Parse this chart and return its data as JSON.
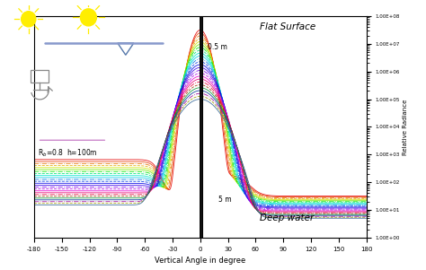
{
  "title": "",
  "xlabel": "Vertical Angle in degree",
  "ylabel": "Relative Radiance",
  "xmin": -180,
  "xmax": 180,
  "ymin": 1.0,
  "ymax": 100000000.0,
  "xticks": [
    -180,
    -150,
    -120,
    -90,
    -60,
    -30,
    0,
    30,
    60,
    90,
    120,
    150,
    180
  ],
  "annotation_rb": "R$_b$=0.8  h=100m",
  "annotation_flat": "Flat Surface",
  "annotation_deep": "Deep water",
  "annotation_05m": "0.5 m",
  "annotation_5m": "5 m",
  "num_curves": 25,
  "background_color": "#ffffff",
  "colors": [
    "#e60000",
    "#e63900",
    "#e67300",
    "#e6ac00",
    "#cce600",
    "#73e600",
    "#00e600",
    "#00e673",
    "#00e6cc",
    "#00cce6",
    "#0073e6",
    "#0039e6",
    "#0000e6",
    "#3900e6",
    "#7300e6",
    "#ac00e6",
    "#e600cc",
    "#e60073",
    "#e60039",
    "#993300",
    "#009933",
    "#003399",
    "#990099",
    "#999900",
    "#336699",
    "#996633",
    "#339966",
    "#663399",
    "#996699",
    "#669999"
  ]
}
